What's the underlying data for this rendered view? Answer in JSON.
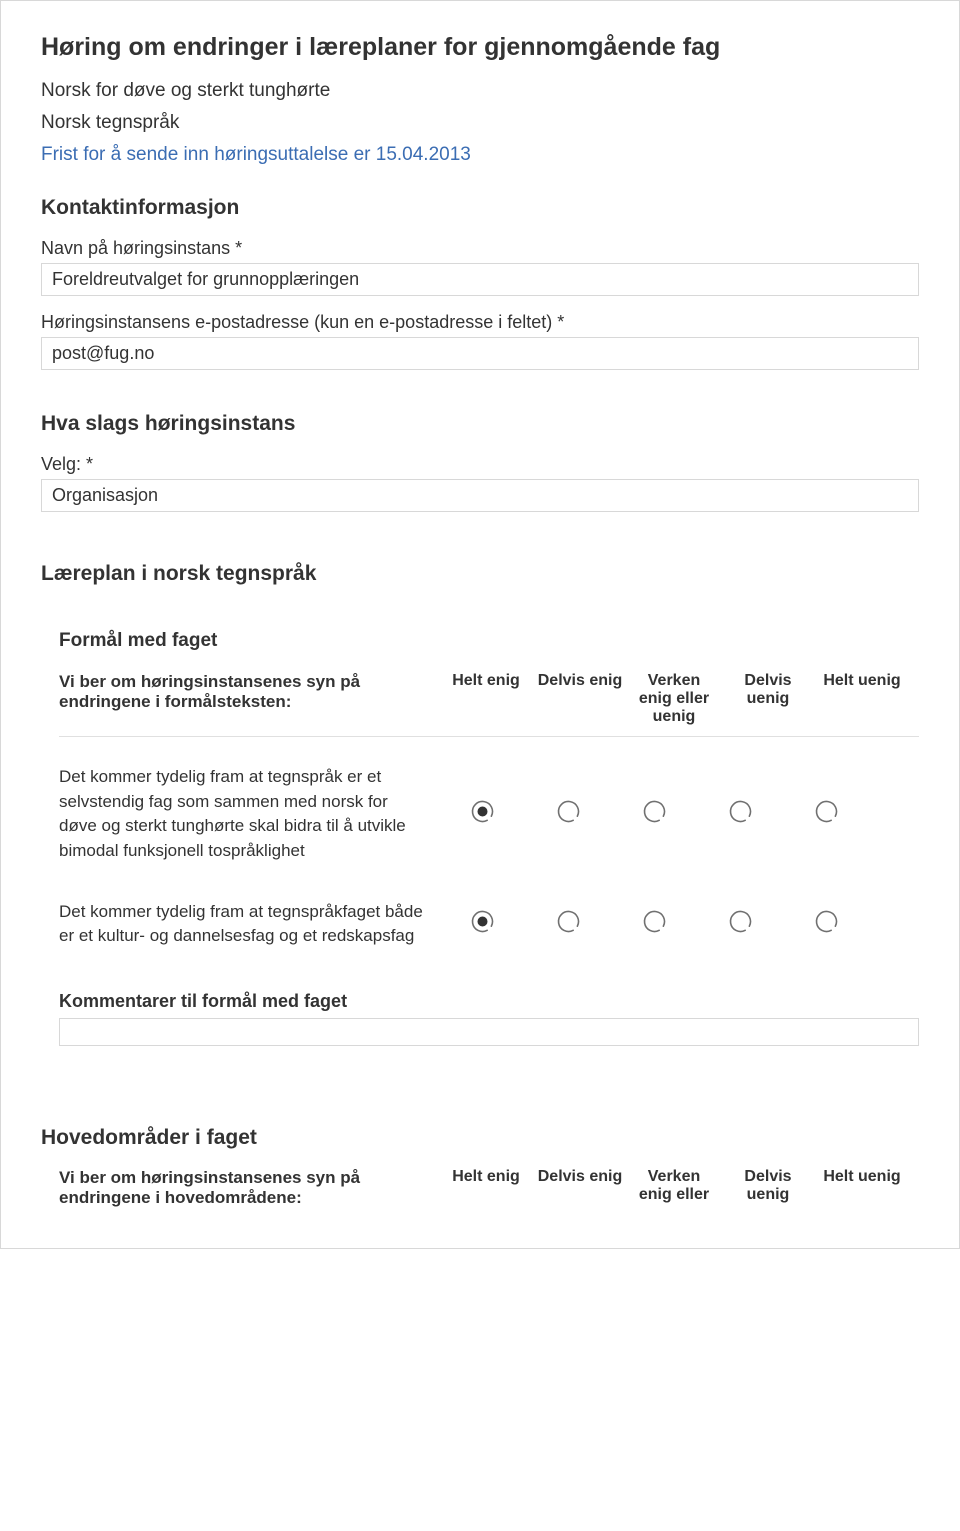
{
  "header": {
    "title": "Høring om endringer i læreplaner for gjennomgående fag",
    "line1": "Norsk for døve og sterkt tunghørte",
    "line2": "Norsk tegnspråk",
    "deadline": "Frist for å sende inn høringsuttalelse er 15.04.2013"
  },
  "contact": {
    "heading": "Kontaktinformasjon",
    "name_label": "Navn på høringsinstans *",
    "name_value": "Foreldreutvalget for grunnopplæringen",
    "email_label": "Høringsinstansens e-postadresse (kun en e-postadresse i feltet) *",
    "email_value": "post@fug.no"
  },
  "kind": {
    "heading": "Hva slags høringsinstans",
    "select_label": "Velg: *",
    "select_value": "Organisasjon"
  },
  "plan": {
    "heading": "Læreplan i norsk tegnspråk"
  },
  "purpose": {
    "heading": "Formål med faget",
    "question_header": "Vi ber om høringsinstansenes syn på endringene i formålsteksten:",
    "options": [
      "Helt enig",
      "Delvis enig",
      "Verken enig eller uenig",
      "Delvis uenig",
      "Helt uenig"
    ],
    "rows": [
      {
        "text": "Det kommer tydelig fram at tegnspråk er et selvstendig fag som sammen med norsk for døve og sterkt tunghørte skal bidra til å utvikle bimodal funksjonell tospråklighet",
        "selected": 0
      },
      {
        "text": "Det kommer tydelig fram at tegnspråkfaget både er et kultur- og dannelsesfag og et redskapsfag",
        "selected": 0
      }
    ],
    "comments_label": "Kommentarer til formål med faget"
  },
  "areas": {
    "heading": "Hovedområder i faget",
    "question_header": "Vi ber om høringsinstansenes syn på endringene i hovedområdene:",
    "options": [
      "Helt enig",
      "Delvis enig",
      "Verken enig eller uenig",
      "Delvis uenig",
      "Helt uenig"
    ],
    "options_last_visible": "Verken enig eller"
  },
  "radio_style": {
    "stroke": "#707070",
    "stroke_width": 1.6,
    "gap_deg": 34,
    "fill_selected": "#333333"
  }
}
